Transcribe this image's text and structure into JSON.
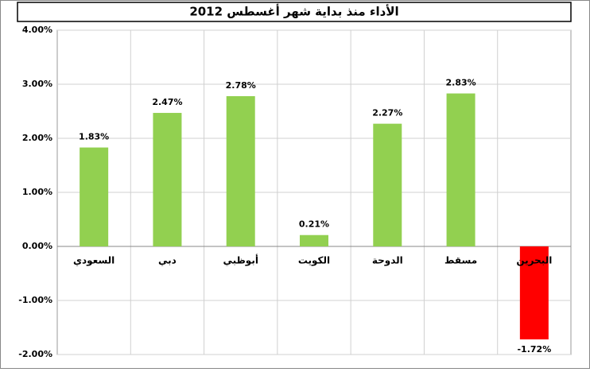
{
  "chart_data": {
    "type": "bar",
    "title": "الأداء منذ بداية شهر أغسطس 2012",
    "categories": [
      "السعودي",
      "دبي",
      "أبوظبي",
      "الكويت",
      "الدوحة",
      "مسقط",
      "البحرين"
    ],
    "values": [
      1.83,
      2.47,
      2.78,
      0.21,
      2.27,
      2.83,
      -1.72
    ],
    "value_labels": [
      "1.83%",
      "2.47%",
      "2.78%",
      "0.21%",
      "2.27%",
      "2.83%",
      "-1.72%"
    ],
    "colors": [
      "#92d050",
      "#92d050",
      "#92d050",
      "#92d050",
      "#92d050",
      "#92d050",
      "#ff0000"
    ],
    "ylim": [
      -2,
      4
    ],
    "yticks": [
      {
        "value": -2,
        "label": "-2.00%"
      },
      {
        "value": -1,
        "label": "-1.00%"
      },
      {
        "value": 0,
        "label": "0.00%"
      },
      {
        "value": 1,
        "label": "1.00%"
      },
      {
        "value": 2,
        "label": "2.00%"
      },
      {
        "value": 3,
        "label": "3.00%"
      },
      {
        "value": 4,
        "label": "4.00%"
      }
    ],
    "grid": true
  }
}
